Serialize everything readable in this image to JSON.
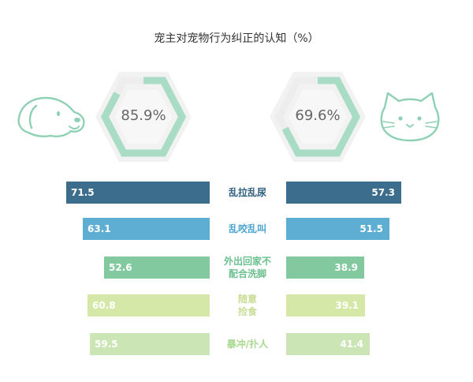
{
  "title": "宠主对宠物行为纠正的认知（%）",
  "gauges": {
    "left": {
      "value": 85.9,
      "label": "85.9%",
      "icon": "dog-icon"
    },
    "right": {
      "value": 69.6,
      "label": "69.6%",
      "icon": "cat-icon"
    }
  },
  "colors": {
    "gauge_fill": "#a8dcc4",
    "gauge_track": "#ededed",
    "gauge_bg": "#f2f2f2",
    "pet_stroke": "#8fd1b4"
  },
  "chart_data": {
    "type": "bar",
    "categories": [
      "乱拉乱尿",
      "乱咬乱叫",
      "外出回家不配合洗脚",
      "随意捡食",
      "暴冲/扑人"
    ],
    "category_lines": [
      [
        "乱拉乱尿"
      ],
      [
        "乱咬乱叫"
      ],
      [
        "外出回家不",
        "配合洗脚"
      ],
      [
        "随意",
        "捡食"
      ],
      [
        "暴冲/扑人"
      ]
    ],
    "series": [
      {
        "values": [
          71.5,
          63.1,
          52.6,
          60.8,
          59.5
        ]
      },
      {
        "values": [
          57.3,
          51.5,
          38.9,
          39.1,
          41.4
        ]
      }
    ],
    "bar_colors": [
      "#3d6d8c",
      "#5eaed4",
      "#83c99f",
      "#d5e8a8",
      "#cbe6b4"
    ],
    "label_colors": [
      "#2f5f7f",
      "#4aa3cf",
      "#6cc08f",
      "#c8dd95",
      "#a9d98f"
    ],
    "value_text_colors": [
      "#ffffff",
      "#ffffff",
      "#ffffff",
      "#ffffff",
      "#ffffff"
    ],
    "xlim": [
      0,
      100
    ]
  }
}
